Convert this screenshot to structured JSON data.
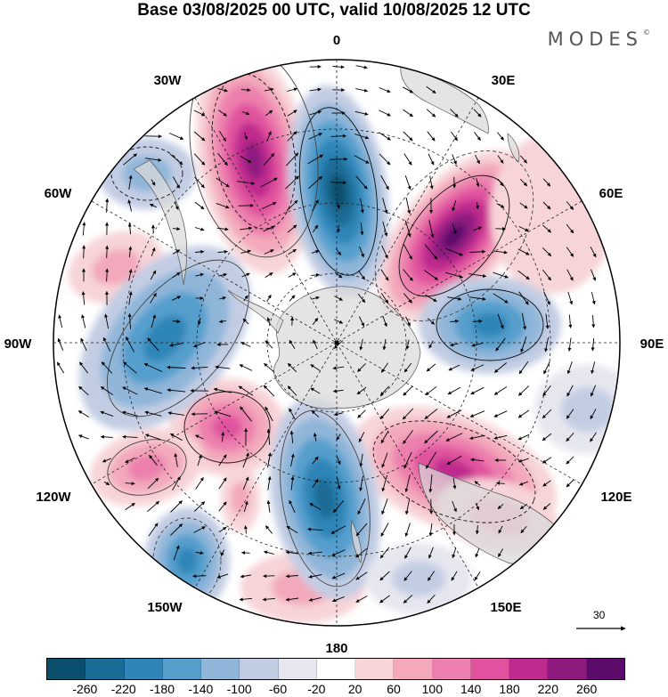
{
  "header": {
    "title": "Base 03/08/2025 00 UTC, valid 10/08/2025 12 UTC",
    "brand": "MODES",
    "brand_mark": "©"
  },
  "map": {
    "projection": "south polar stereographic",
    "longitude_labels": {
      "top": "0",
      "bottom": "180",
      "upper_left": "30W",
      "upper_right": "30E",
      "left_upper": "60W",
      "right_upper": "60E",
      "left": "90W",
      "right": "90E",
      "left_lower": "120W",
      "right_lower": "120E",
      "lower_left": "150W",
      "lower_right": "150E"
    },
    "palette": {
      "-260": "#0b4f6c",
      "-220": "#1a6c96",
      "-180": "#2f85b8",
      "-140": "#559fcd",
      "-100": "#8fb6d9",
      "-60": "#c2cde3",
      "-20": "#e6e6ef",
      "20": "#ffffff",
      "60": "#f7d4d8",
      "100": "#f3a9bb",
      "140": "#ec7fae",
      "180": "#e0529e",
      "220": "#bf2a8e",
      "260": "#8e1a80",
      "300": "#5c0b6a"
    },
    "land_color": "#d9d9d9"
  },
  "colorbar": {
    "ticks": [
      "-260",
      "-220",
      "-180",
      "-140",
      "-100",
      "-60",
      "-20",
      "20",
      "60",
      "100",
      "140",
      "180",
      "220",
      "260"
    ],
    "colors": [
      "#0b4f6c",
      "#1a6c96",
      "#2f85b8",
      "#559fcd",
      "#8fb6d9",
      "#c2cde3",
      "#e6e6ef",
      "#ffffff",
      "#f7d4d8",
      "#f3a9bb",
      "#ec7fae",
      "#e0529e",
      "#bf2a8e",
      "#8e1a80",
      "#5c0b6a"
    ]
  },
  "reference_vector": {
    "label": "30"
  }
}
